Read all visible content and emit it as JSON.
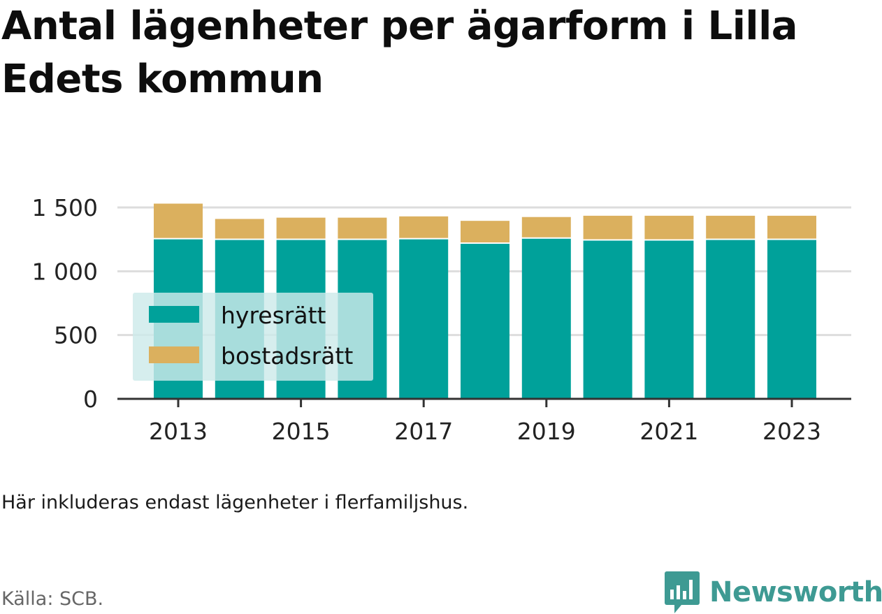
{
  "title": "Antal lägenheter per ägarform i Lilla Edets kommun",
  "note": "Här inkluderas endast lägenheter i flerfamiljshus.",
  "source": "Källa: SCB.",
  "brand": "Newsworthy",
  "colors": {
    "hyresratt": "#00a19a",
    "bostadsratt": "#dbb05e",
    "legend_bg": "#cdeaea",
    "grid": "#dddddd",
    "axis": "#333333",
    "brand": "#3e9a93"
  },
  "chart_data": {
    "type": "bar",
    "stacked": true,
    "categories": [
      "2013",
      "2014",
      "2015",
      "2016",
      "2017",
      "2018",
      "2019",
      "2020",
      "2021",
      "2022",
      "2023"
    ],
    "x_tick_labels": [
      "2013",
      "2015",
      "2017",
      "2019",
      "2021",
      "2023"
    ],
    "y_ticks": [
      0,
      500,
      1000,
      1500
    ],
    "y_tick_labels": [
      "0",
      "500",
      "1 000",
      "1 500"
    ],
    "ylim": [
      0,
      1500
    ],
    "grid": true,
    "legend_position": "inside-left",
    "series": [
      {
        "name": "hyresrätt",
        "color": "#00a19a",
        "values": [
          1250,
          1245,
          1245,
          1245,
          1250,
          1215,
          1255,
          1240,
          1240,
          1245,
          1245
        ]
      },
      {
        "name": "bostadsrätt",
        "color": "#dbb05e",
        "values": [
          280,
          165,
          175,
          175,
          180,
          180,
          170,
          195,
          195,
          190,
          190
        ]
      }
    ]
  }
}
